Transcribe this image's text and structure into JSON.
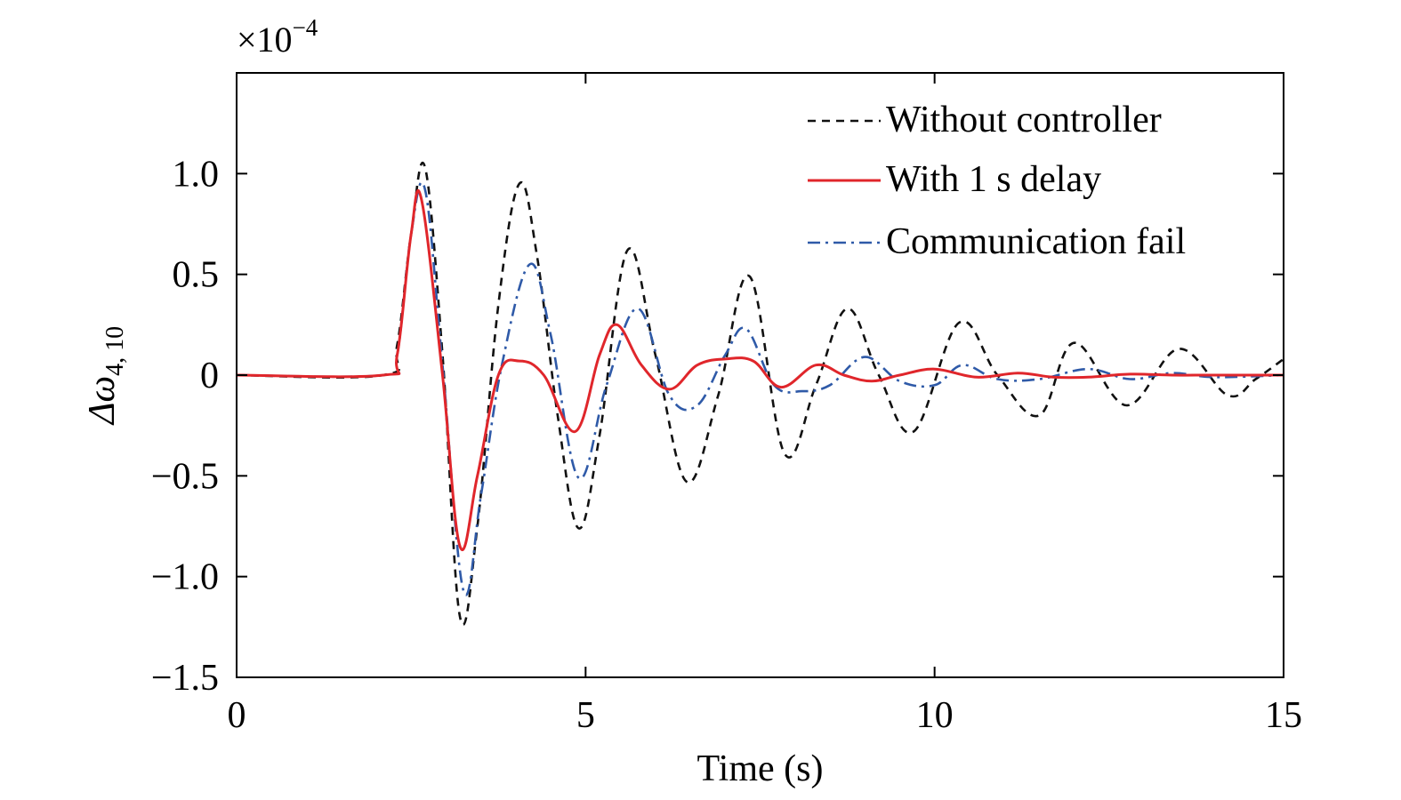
{
  "chart_data": {
    "type": "line",
    "xlabel": "Time (s)",
    "ylabel_base": "Δω",
    "ylabel_sub": "4, 10",
    "y_multiplier": {
      "base": "×10",
      "exponent": "−4"
    },
    "xlim": [
      0,
      15
    ],
    "ylim": [
      -1.5,
      1.5
    ],
    "xticks": [
      0,
      5,
      10,
      15
    ],
    "xtick_labels": [
      "0",
      "5",
      "10",
      "15"
    ],
    "yticks": [
      -1.5,
      -1.0,
      -0.5,
      0,
      0.5,
      1.0
    ],
    "ytick_labels": [
      "−1.5",
      "−1.0",
      "−0.5",
      "0",
      "0.5",
      "1.0"
    ],
    "grid": false,
    "legend_position": "top-right",
    "series": [
      {
        "name": "Without controller",
        "color": "#111111",
        "dash": "dashed",
        "x": [
          0,
          2.1,
          2.3,
          2.5,
          2.7,
          2.95,
          3.2,
          3.45,
          3.75,
          4.05,
          4.3,
          4.6,
          4.9,
          5.2,
          5.6,
          6.0,
          6.45,
          6.9,
          7.35,
          7.85,
          8.3,
          8.75,
          9.2,
          9.7,
          10.35,
          10.9,
          11.5,
          12.0,
          12.75,
          13.5,
          14.2,
          14.6,
          15.0
        ],
        "y": [
          0,
          0,
          0.15,
          0.7,
          1.03,
          0.1,
          -1.2,
          -0.75,
          0.35,
          0.95,
          0.6,
          -0.2,
          -0.76,
          -0.3,
          0.62,
          0.1,
          -0.53,
          -0.1,
          0.49,
          -0.39,
          -0.05,
          0.33,
          0.0,
          -0.28,
          0.26,
          0.0,
          -0.2,
          0.16,
          -0.15,
          0.13,
          -0.1,
          -0.02,
          0.08
        ]
      },
      {
        "name": "With 1 s delay",
        "color": "#e0262b",
        "dash": "solid",
        "x": [
          0,
          2.1,
          2.3,
          2.5,
          2.65,
          2.95,
          3.2,
          3.45,
          3.75,
          4.05,
          4.4,
          4.85,
          5.2,
          5.45,
          5.8,
          6.2,
          6.6,
          7.0,
          7.4,
          7.8,
          8.3,
          8.7,
          9.1,
          9.5,
          10.0,
          10.6,
          11.2,
          11.7,
          12.2,
          12.8,
          13.4,
          14.0,
          15.0
        ],
        "y": [
          0,
          0,
          0.1,
          0.7,
          0.87,
          0.0,
          -0.85,
          -0.5,
          0.0,
          0.07,
          0.0,
          -0.28,
          0.1,
          0.25,
          0.05,
          -0.07,
          0.05,
          0.08,
          0.07,
          -0.06,
          0.05,
          0.0,
          -0.03,
          0.0,
          0.03,
          -0.01,
          0.01,
          -0.01,
          -0.01,
          0.005,
          0.0,
          0.0,
          0.0
        ]
      },
      {
        "name": "Communication fail",
        "color": "#2f5aa8",
        "dash": "dashdot",
        "x": [
          0,
          2.1,
          2.3,
          2.5,
          2.7,
          2.95,
          3.25,
          3.5,
          3.8,
          4.2,
          4.5,
          4.9,
          5.3,
          5.75,
          6.2,
          6.6,
          7.0,
          7.3,
          7.7,
          8.1,
          8.5,
          9.0,
          9.5,
          10.0,
          10.4,
          10.9,
          11.5,
          12.2,
          12.8,
          13.4,
          14.0,
          15.0
        ],
        "y": [
          0,
          0,
          0.1,
          0.7,
          0.92,
          0.05,
          -1.07,
          -0.6,
          0.05,
          0.55,
          0.2,
          -0.51,
          -0.05,
          0.33,
          -0.1,
          -0.15,
          0.1,
          0.23,
          -0.05,
          -0.08,
          -0.05,
          0.09,
          -0.03,
          -0.05,
          0.05,
          -0.02,
          -0.02,
          0.03,
          -0.02,
          0.01,
          -0.01,
          0.0
        ]
      }
    ]
  }
}
